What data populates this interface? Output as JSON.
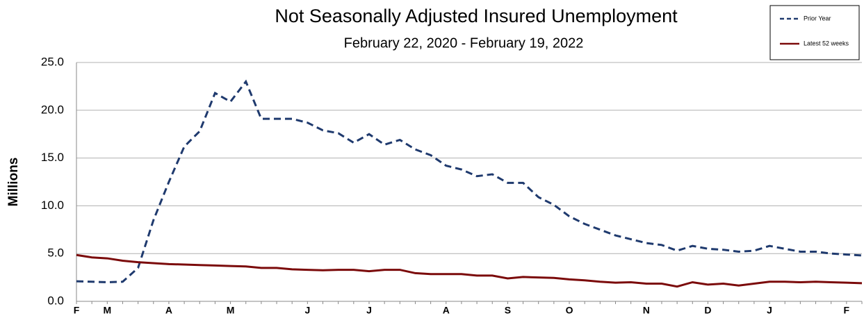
{
  "chart_data": {
    "type": "line",
    "title": "Not Seasonally Adjusted Insured Unemployment",
    "subtitle": "February 22, 2020 - February 19, 2022",
    "y_label": "Millions",
    "categories": [
      "F",
      null,
      "M",
      null,
      null,
      null,
      "A",
      null,
      null,
      null,
      "M",
      null,
      null,
      null,
      null,
      "J",
      null,
      null,
      null,
      "J",
      null,
      null,
      null,
      null,
      "A",
      null,
      null,
      null,
      "S",
      null,
      null,
      null,
      "O",
      null,
      null,
      null,
      null,
      "N",
      null,
      null,
      null,
      "D",
      null,
      null,
      null,
      "J",
      null,
      null,
      null,
      null,
      "F",
      null
    ],
    "series": [
      {
        "name": "Prior Year",
        "color": "#1f3a6e",
        "dash": true,
        "values": [
          2.1,
          2.05,
          2.0,
          2.05,
          3.5,
          8.5,
          12.5,
          16.2,
          17.8,
          21.8,
          20.9,
          23.0,
          19.1,
          19.1,
          19.1,
          18.7,
          17.9,
          17.6,
          16.6,
          17.5,
          16.4,
          16.9,
          15.9,
          15.3,
          14.2,
          13.8,
          13.1,
          13.3,
          12.4,
          12.4,
          10.9,
          10.1,
          8.9,
          8.1,
          7.5,
          6.9,
          6.5,
          6.1,
          5.9,
          5.3,
          5.8,
          5.5,
          5.4,
          5.2,
          5.3,
          5.8,
          5.5,
          5.2,
          5.2,
          5.0,
          4.9,
          4.8
        ]
      },
      {
        "name": "Latest 52 weeks",
        "color": "#7b0a0a",
        "dash": false,
        "values": [
          4.85,
          4.6,
          4.5,
          4.25,
          4.1,
          4.0,
          3.9,
          3.85,
          3.8,
          3.75,
          3.7,
          3.65,
          3.5,
          3.5,
          3.35,
          3.3,
          3.25,
          3.3,
          3.3,
          3.15,
          3.3,
          3.3,
          2.95,
          2.85,
          2.85,
          2.85,
          2.7,
          2.7,
          2.4,
          2.55,
          2.5,
          2.45,
          2.3,
          2.2,
          2.05,
          1.95,
          2.0,
          1.85,
          1.85,
          1.55,
          2.0,
          1.75,
          1.85,
          1.65,
          1.85,
          2.05,
          2.05,
          2.0,
          2.05,
          2.0,
          1.95,
          1.9
        ]
      }
    ],
    "ylim": [
      0,
      25
    ],
    "yticks": [
      {
        "value": 0,
        "label": "0.0"
      },
      {
        "value": 5,
        "label": "5.0"
      },
      {
        "value": 10,
        "label": "10.0"
      },
      {
        "value": 15,
        "label": "15.0"
      },
      {
        "value": 20,
        "label": "20.0"
      },
      {
        "value": 25,
        "label": "25.0"
      }
    ],
    "grid": true,
    "legend": "top-right"
  }
}
